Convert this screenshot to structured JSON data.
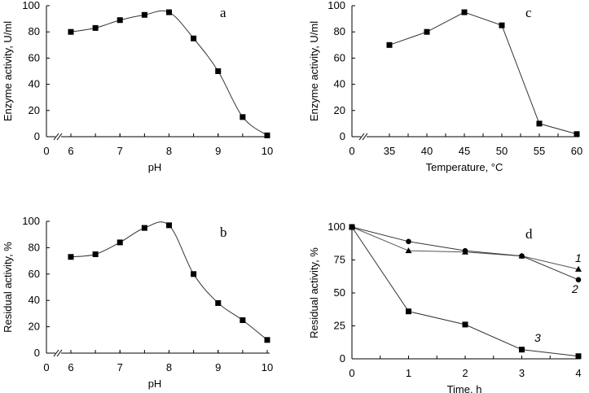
{
  "chart_data": [
    {
      "panel": "a",
      "type": "line",
      "smooth": true,
      "xlabel": "pH",
      "ylabel": "Enzyme activity, U/ml",
      "xticks": [
        0,
        6,
        7,
        8,
        9,
        10
      ],
      "yticks": [
        0,
        20,
        40,
        60,
        80,
        100
      ],
      "ylim": [
        0,
        100
      ],
      "axis_break": true,
      "series": [
        {
          "marker": "square",
          "x": [
            6,
            6.5,
            7,
            7.5,
            8,
            8.5,
            9,
            9.5,
            10
          ],
          "y": [
            80,
            83,
            89,
            93,
            95,
            75,
            50,
            15,
            1
          ]
        }
      ]
    },
    {
      "panel": "c",
      "type": "line",
      "smooth": false,
      "xlabel": "Temperature, °C",
      "ylabel": "Enzyme activity, U/ml",
      "xticks": [
        0,
        35,
        40,
        45,
        50,
        55,
        60
      ],
      "yticks": [
        0,
        20,
        40,
        60,
        80,
        100
      ],
      "ylim": [
        0,
        100
      ],
      "axis_break": true,
      "series": [
        {
          "marker": "square",
          "x": [
            35,
            40,
            45,
            50,
            55,
            60
          ],
          "y": [
            70,
            80,
            95,
            85,
            10,
            2
          ]
        }
      ]
    },
    {
      "panel": "b",
      "type": "line",
      "smooth": true,
      "xlabel": "pH",
      "ylabel": "Residual activity, %",
      "xticks": [
        0,
        6,
        7,
        8,
        9,
        10
      ],
      "yticks": [
        0,
        20,
        40,
        60,
        80,
        100
      ],
      "ylim": [
        0,
        100
      ],
      "axis_break": true,
      "series": [
        {
          "marker": "square",
          "x": [
            6,
            6.5,
            7,
            7.5,
            8,
            8.5,
            9,
            9.5,
            10
          ],
          "y": [
            73,
            75,
            84,
            95,
            97,
            60,
            38,
            25,
            10
          ]
        }
      ]
    },
    {
      "panel": "d",
      "type": "line",
      "smooth": false,
      "xlabel": "Time, h",
      "ylabel": "Residual activity, %",
      "xticks": [
        0,
        1,
        2,
        3,
        4
      ],
      "yticks": [
        0,
        25,
        50,
        75,
        100
      ],
      "ylim": [
        0,
        100
      ],
      "xlim": [
        0,
        4
      ],
      "axis_break": false,
      "series": [
        {
          "name": "1",
          "marker": "triangle",
          "x": [
            0,
            1,
            2,
            3,
            4
          ],
          "y": [
            100,
            82,
            81,
            78,
            68
          ]
        },
        {
          "name": "2",
          "marker": "circle",
          "x": [
            0,
            1,
            2,
            3,
            4
          ],
          "y": [
            100,
            89,
            82,
            78,
            60
          ]
        },
        {
          "name": "3",
          "marker": "square",
          "x": [
            0,
            1,
            2,
            3,
            4
          ],
          "y": [
            100,
            36,
            26,
            7,
            2
          ]
        }
      ]
    }
  ]
}
